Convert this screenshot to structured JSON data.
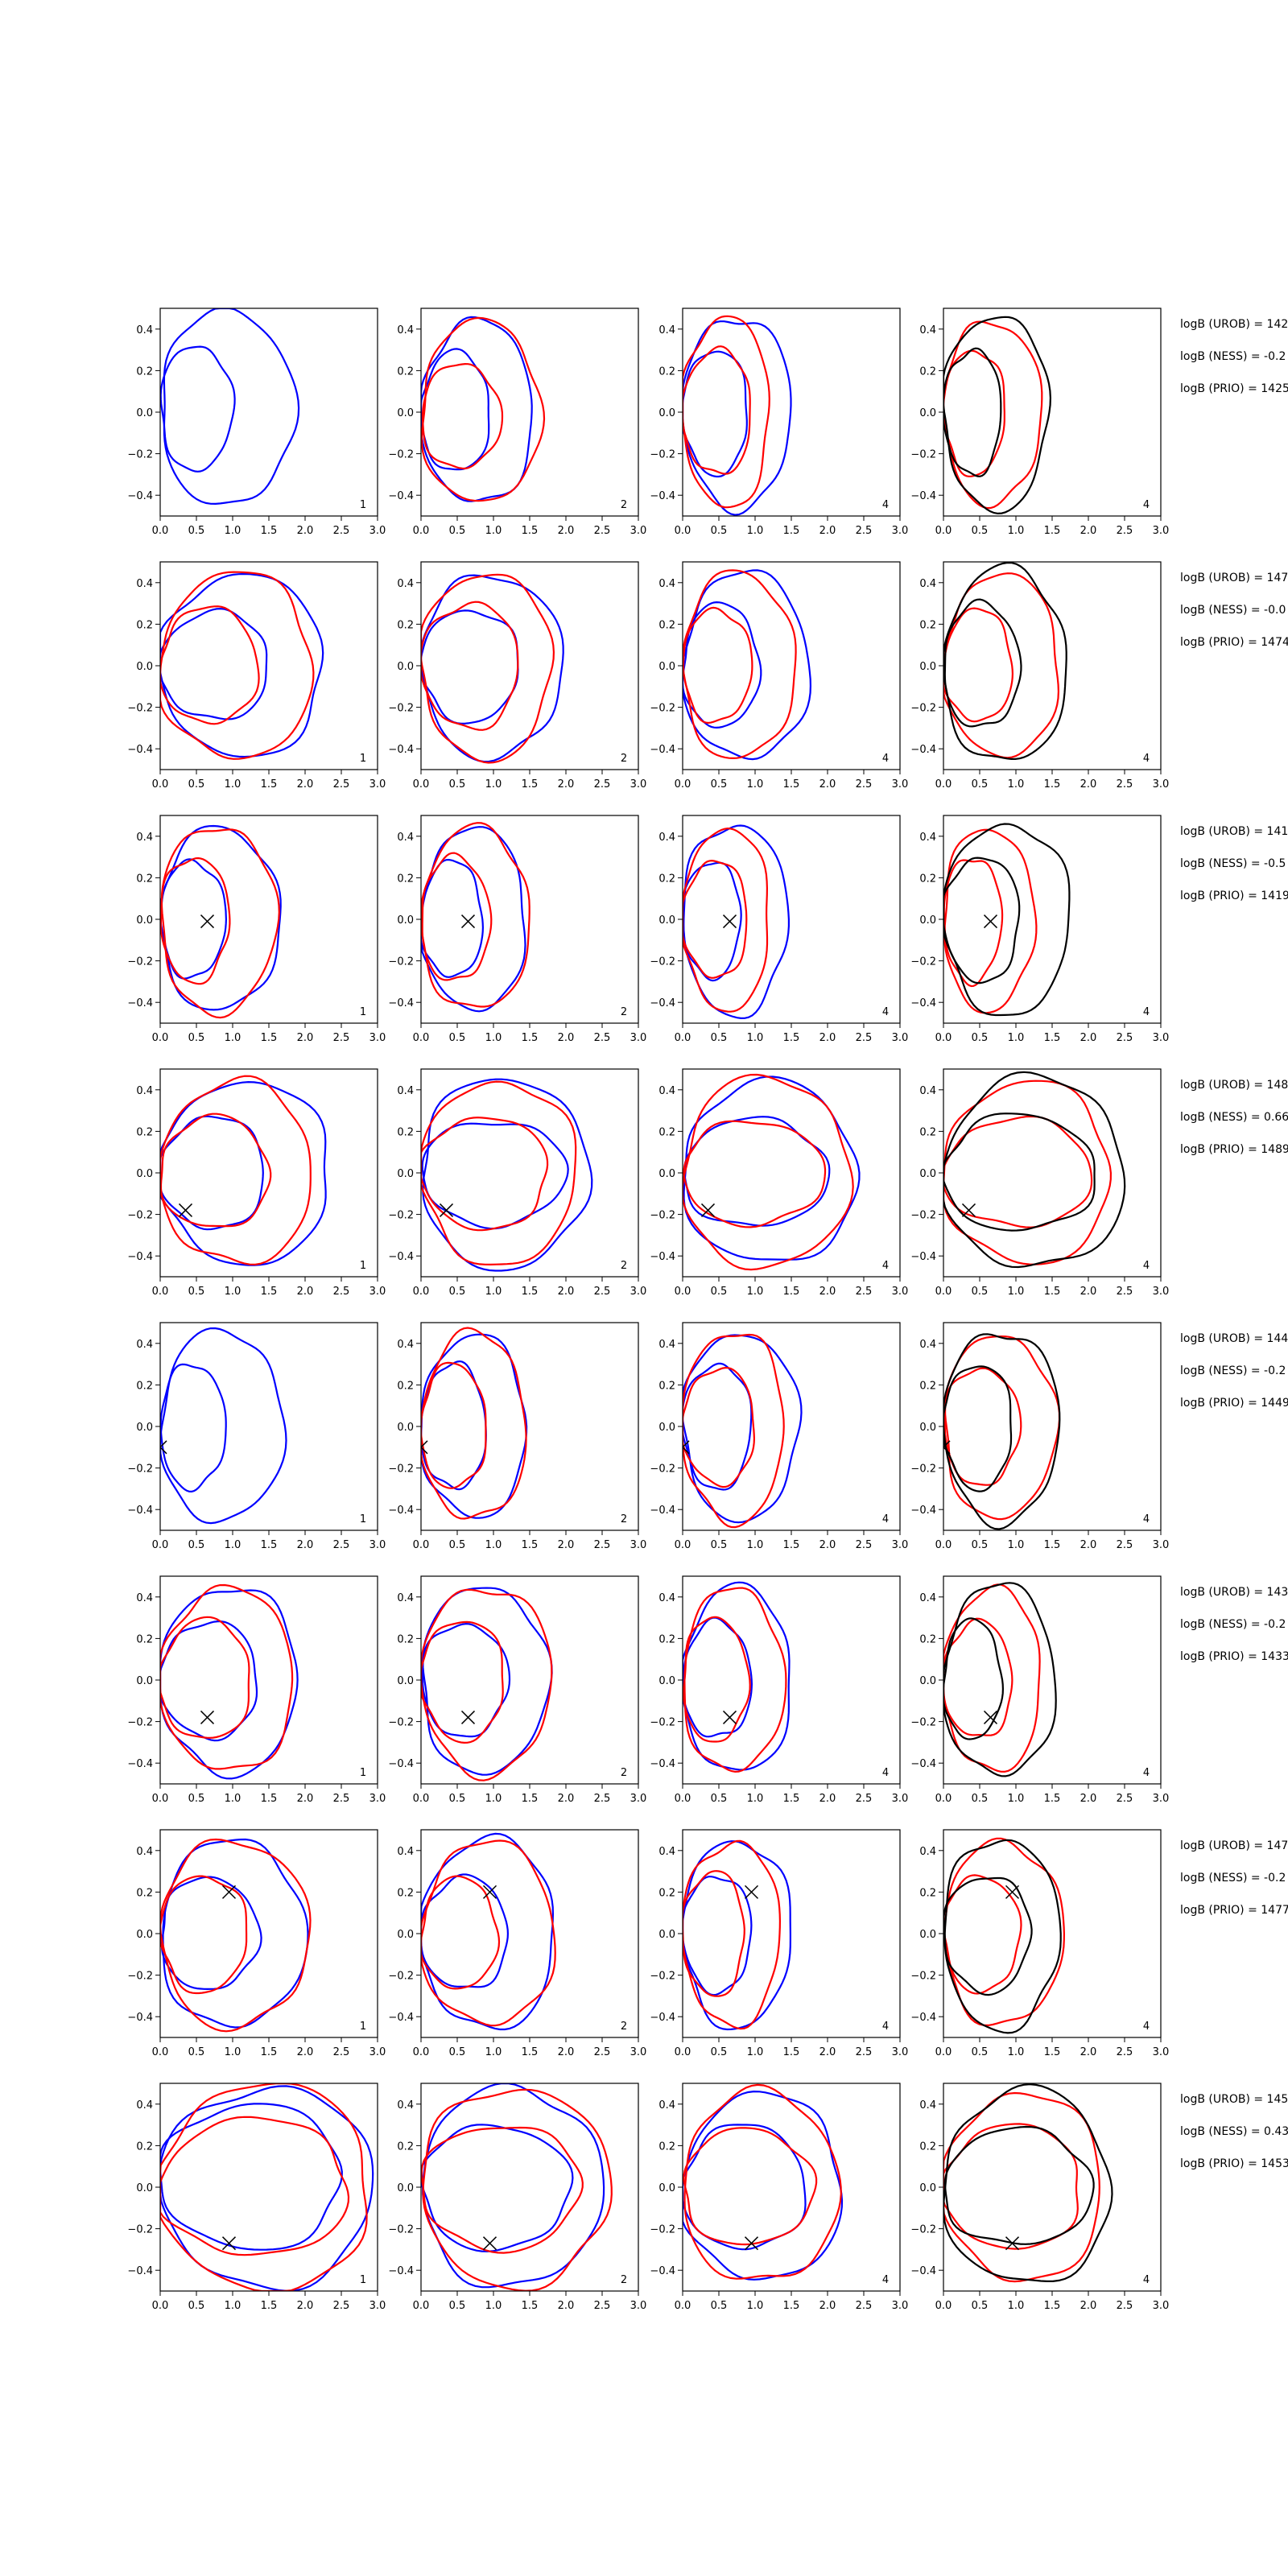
{
  "figure": {
    "row_count": 8,
    "panels_per_row": 4,
    "panel_corner_labels": [
      "1",
      "2",
      "4",
      "4"
    ]
  },
  "colors": {
    "series_a": "#0000ff",
    "series_b": "#ff0000",
    "series_c": "#000000",
    "axes": "#000000",
    "background": "#ffffff"
  },
  "axes": {
    "xlim": [
      0.0,
      3.0
    ],
    "ylim": [
      -0.5,
      0.5
    ],
    "xticks": [
      "0.0",
      "0.5",
      "1.0",
      "1.5",
      "2.0",
      "2.5",
      "3.0"
    ],
    "yticks": [
      "0.4",
      "0.2",
      "0.0",
      "−0.2",
      "−0.4"
    ],
    "ytick_values": [
      0.4,
      0.2,
      0.0,
      -0.2,
      -0.4
    ],
    "grid": false
  },
  "chart_data": {
    "type": "line",
    "description_kind": "contour panels (closed level curves) with a cross marker",
    "rows": [
      {
        "marker": null,
        "annotations": [
          "logB (UROB) = 142",
          "logB (NESS) = -0.2",
          "logB (PRIO) = 1425"
        ],
        "panels": [
          {
            "label": "1",
            "blue": [
              [
                1.85,
                0.02,
                0.47
              ],
              [
                1.0,
                0.02,
                0.3
              ]
            ],
            "red": [],
            "black": []
          },
          {
            "label": "2",
            "blue": [
              [
                1.55,
                0.0,
                0.44
              ],
              [
                0.95,
                0.0,
                0.29
              ]
            ],
            "red": [
              [
                1.65,
                0.0,
                0.44
              ],
              [
                1.1,
                -0.02,
                0.25
              ]
            ],
            "black": []
          },
          {
            "label": "4",
            "blue": [
              [
                1.5,
                0.0,
                0.46
              ],
              [
                0.9,
                0.0,
                0.3
              ]
            ],
            "red": [
              [
                1.2,
                0.0,
                0.46
              ],
              [
                0.95,
                0.0,
                0.3
              ]
            ],
            "black": []
          },
          {
            "label": "4",
            "blue": [],
            "red": [
              [
                1.35,
                0.0,
                0.44
              ],
              [
                0.85,
                0.0,
                0.3
              ]
            ],
            "black": [
              [
                1.45,
                0.0,
                0.47
              ],
              [
                0.8,
                0.0,
                0.3
              ]
            ]
          }
        ]
      },
      {
        "marker": null,
        "annotations": [
          "logB (UROB) = 147",
          "logB (NESS) = -0.0",
          "logB (PRIO) = 1474"
        ],
        "panels": [
          {
            "label": "1",
            "blue": [
              [
                2.25,
                0.0,
                0.44
              ],
              [
                1.5,
                0.0,
                0.26
              ]
            ],
            "red": [
              [
                2.1,
                0.0,
                0.45
              ],
              [
                1.35,
                0.0,
                0.28
              ]
            ],
            "black": []
          },
          {
            "label": "2",
            "blue": [
              [
                1.95,
                0.0,
                0.44
              ],
              [
                1.35,
                0.0,
                0.27
              ]
            ],
            "red": [
              [
                1.8,
                0.0,
                0.45
              ],
              [
                1.35,
                0.0,
                0.3
              ]
            ],
            "black": []
          },
          {
            "label": "4",
            "blue": [
              [
                1.75,
                0.0,
                0.45
              ],
              [
                1.05,
                0.0,
                0.3
              ]
            ],
            "red": [
              [
                1.55,
                0.0,
                0.45
              ],
              [
                0.95,
                0.0,
                0.27
              ]
            ],
            "black": []
          },
          {
            "label": "4",
            "blue": [],
            "red": [
              [
                1.6,
                0.0,
                0.44
              ],
              [
                0.95,
                0.0,
                0.27
              ]
            ],
            "black": [
              [
                1.7,
                0.0,
                0.47
              ],
              [
                1.05,
                0.0,
                0.3
              ]
            ]
          }
        ]
      },
      {
        "marker": [
          0.65,
          -0.01
        ],
        "annotations": [
          "logB (UROB) = 141",
          "logB (NESS) = -0.5",
          "logB (PRIO) = 1419"
        ],
        "panels": [
          {
            "label": "1",
            "blue": [
              [
                1.65,
                0.0,
                0.44
              ],
              [
                0.9,
                0.0,
                0.28
              ]
            ],
            "red": [
              [
                1.6,
                0.0,
                0.45
              ],
              [
                0.95,
                0.0,
                0.3
              ]
            ],
            "black": []
          },
          {
            "label": "2",
            "blue": [
              [
                1.45,
                0.0,
                0.44
              ],
              [
                0.85,
                0.0,
                0.28
              ]
            ],
            "red": [
              [
                1.5,
                0.0,
                0.44
              ],
              [
                0.95,
                0.0,
                0.3
              ]
            ],
            "black": []
          },
          {
            "label": "4",
            "blue": [
              [
                1.45,
                0.0,
                0.46
              ],
              [
                0.8,
                0.0,
                0.28
              ]
            ],
            "red": [
              [
                1.2,
                0.0,
                0.44
              ],
              [
                0.9,
                0.0,
                0.28
              ]
            ],
            "black": []
          },
          {
            "label": "4",
            "blue": [],
            "red": [
              [
                1.25,
                0.0,
                0.44
              ],
              [
                0.8,
                0.0,
                0.3
              ]
            ],
            "black": [
              [
                1.75,
                0.0,
                0.46
              ],
              [
                1.05,
                0.0,
                0.3
              ]
            ]
          }
        ]
      },
      {
        "marker": [
          0.35,
          -0.18
        ],
        "annotations": [
          "logB (UROB) = 148",
          "logB (NESS) = 0.66",
          "logB (PRIO) = 1489"
        ],
        "panels": [
          {
            "label": "1",
            "blue": [
              [
                2.35,
                0.0,
                0.44
              ],
              [
                1.45,
                0.0,
                0.27
              ]
            ],
            "red": [
              [
                2.1,
                0.0,
                0.44
              ],
              [
                1.5,
                0.0,
                0.27
              ]
            ],
            "black": []
          },
          {
            "label": "2",
            "blue": [
              [
                2.3,
                0.0,
                0.46
              ],
              [
                2.0,
                0.0,
                0.25
              ]
            ],
            "red": [
              [
                2.15,
                0.0,
                0.44
              ],
              [
                1.75,
                0.0,
                0.27
              ]
            ],
            "black": []
          },
          {
            "label": "4",
            "blue": [
              [
                2.4,
                0.0,
                0.44
              ],
              [
                2.0,
                0.0,
                0.26
              ]
            ],
            "red": [
              [
                2.3,
                0.0,
                0.46
              ],
              [
                1.95,
                0.0,
                0.25
              ]
            ],
            "black": []
          },
          {
            "label": "4",
            "blue": [],
            "red": [
              [
                2.3,
                0.0,
                0.44
              ],
              [
                2.05,
                0.0,
                0.26
              ]
            ],
            "black": [
              [
                2.5,
                0.0,
                0.46
              ],
              [
                2.1,
                0.0,
                0.28
              ]
            ]
          }
        ]
      },
      {
        "marker": [
          0.0,
          -0.1
        ],
        "annotations": [
          "logB (UROB) = 144",
          "logB (NESS) = -0.2",
          "logB (PRIO) = 1449"
        ],
        "panels": [
          {
            "label": "1",
            "blue": [
              [
                1.7,
                0.0,
                0.46
              ],
              [
                0.9,
                0.0,
                0.3
              ]
            ],
            "red": [],
            "black": []
          },
          {
            "label": "2",
            "blue": [
              [
                1.45,
                0.0,
                0.44
              ],
              [
                0.9,
                0.0,
                0.3
              ]
            ],
            "red": [
              [
                1.45,
                0.0,
                0.45
              ],
              [
                0.9,
                0.0,
                0.3
              ]
            ],
            "black": []
          },
          {
            "label": "4",
            "blue": [
              [
                1.6,
                0.0,
                0.45
              ],
              [
                0.95,
                0.0,
                0.3
              ]
            ],
            "red": [
              [
                1.4,
                0.0,
                0.46
              ],
              [
                1.0,
                0.0,
                0.28
              ]
            ],
            "black": []
          },
          {
            "label": "4",
            "blue": [],
            "red": [
              [
                1.55,
                0.0,
                0.44
              ],
              [
                1.05,
                0.0,
                0.28
              ]
            ],
            "black": [
              [
                1.6,
                0.0,
                0.46
              ],
              [
                0.95,
                0.0,
                0.3
              ]
            ]
          }
        ]
      },
      {
        "marker": [
          0.65,
          -0.18
        ],
        "annotations": [
          "logB (UROB) = 143",
          "logB (NESS) = -0.2",
          "logB (PRIO) = 1433"
        ],
        "panels": [
          {
            "label": "1",
            "blue": [
              [
                1.9,
                0.0,
                0.45
              ],
              [
                1.35,
                0.0,
                0.28
              ]
            ],
            "red": [
              [
                1.85,
                0.0,
                0.44
              ],
              [
                1.25,
                0.0,
                0.29
              ]
            ],
            "black": []
          },
          {
            "label": "2",
            "blue": [
              [
                1.75,
                0.0,
                0.45
              ],
              [
                1.2,
                0.0,
                0.27
              ]
            ],
            "red": [
              [
                1.8,
                0.0,
                0.45
              ],
              [
                1.15,
                0.0,
                0.29
              ]
            ],
            "black": []
          },
          {
            "label": "4",
            "blue": [
              [
                1.5,
                0.0,
                0.45
              ],
              [
                0.95,
                0.0,
                0.28
              ]
            ],
            "red": [
              [
                1.4,
                0.0,
                0.44
              ],
              [
                0.9,
                0.0,
                0.3
              ]
            ],
            "black": []
          },
          {
            "label": "4",
            "blue": [],
            "red": [
              [
                1.35,
                0.0,
                0.44
              ],
              [
                0.95,
                0.0,
                0.28
              ]
            ],
            "black": [
              [
                1.55,
                0.0,
                0.46
              ],
              [
                0.8,
                0.0,
                0.29
              ]
            ]
          }
        ]
      },
      {
        "marker": [
          0.95,
          0.2
        ],
        "annotations": [
          "logB (UROB) = 147",
          "logB (NESS) = -0.2",
          "logB (PRIO) = 1477"
        ],
        "panels": [
          {
            "label": "1",
            "blue": [
              [
                2.0,
                0.0,
                0.45
              ],
              [
                1.35,
                0.0,
                0.27
              ]
            ],
            "red": [
              [
                2.05,
                0.0,
                0.45
              ],
              [
                1.2,
                0.0,
                0.28
              ]
            ],
            "black": []
          },
          {
            "label": "2",
            "blue": [
              [
                1.85,
                0.0,
                0.46
              ],
              [
                1.2,
                0.0,
                0.27
              ]
            ],
            "red": [
              [
                1.85,
                0.0,
                0.44
              ],
              [
                1.05,
                0.0,
                0.27
              ]
            ],
            "black": []
          },
          {
            "label": "4",
            "blue": [
              [
                1.5,
                0.0,
                0.45
              ],
              [
                0.95,
                0.0,
                0.28
              ]
            ],
            "red": [
              [
                1.35,
                0.0,
                0.44
              ],
              [
                0.85,
                0.0,
                0.3
              ]
            ],
            "black": []
          },
          {
            "label": "4",
            "blue": [],
            "red": [
              [
                1.65,
                0.0,
                0.44
              ],
              [
                1.05,
                0.0,
                0.28
              ]
            ],
            "black": [
              [
                1.6,
                0.0,
                0.46
              ],
              [
                1.2,
                0.0,
                0.28
              ]
            ]
          }
        ]
      },
      {
        "marker": [
          0.95,
          -0.27
        ],
        "annotations": [
          "logB (UROB) = 145",
          "logB (NESS) = 0.43",
          "logB (PRIO) = 1453"
        ],
        "panels": [
          {
            "label": "1",
            "blue": [
              [
                2.95,
                0.0,
                0.48
              ],
              [
                2.5,
                0.05,
                0.35
              ]
            ],
            "red": [
              [
                2.9,
                0.0,
                0.5
              ],
              [
                2.6,
                0.0,
                0.33
              ]
            ],
            "black": []
          },
          {
            "label": "2",
            "blue": [
              [
                2.5,
                0.0,
                0.48
              ],
              [
                2.05,
                0.0,
                0.3
              ]
            ],
            "red": [
              [
                2.6,
                0.0,
                0.48
              ],
              [
                2.2,
                0.0,
                0.3
              ]
            ],
            "black": []
          },
          {
            "label": "4",
            "blue": [
              [
                2.2,
                0.0,
                0.45
              ],
              [
                1.7,
                0.0,
                0.3
              ]
            ],
            "red": [
              [
                2.15,
                0.0,
                0.46
              ],
              [
                1.8,
                0.0,
                0.28
              ]
            ],
            "black": []
          },
          {
            "label": "4",
            "blue": [],
            "red": [
              [
                2.2,
                0.0,
                0.45
              ],
              [
                1.9,
                0.0,
                0.3
              ]
            ],
            "black": [
              [
                2.3,
                0.0,
                0.47
              ],
              [
                2.05,
                0.0,
                0.28
              ]
            ]
          }
        ]
      }
    ]
  }
}
